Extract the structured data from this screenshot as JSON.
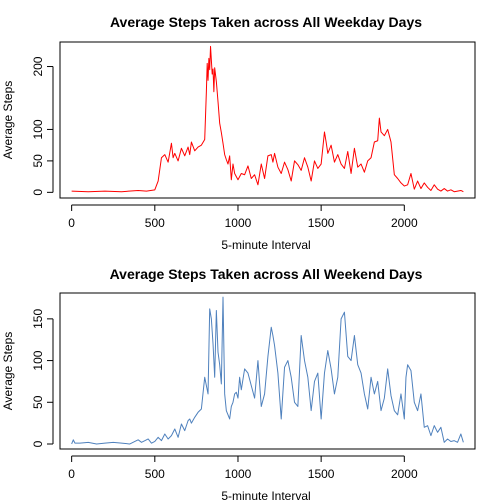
{
  "chart_data": [
    {
      "type": "line",
      "title": "Average Steps Taken across All Weekday Days",
      "xlabel": "5-minute Interval",
      "ylabel": "Average Steps",
      "xlim": [
        -70,
        2425
      ],
      "ylim": [
        -9,
        239
      ],
      "xticks": [
        0,
        500,
        1000,
        1500,
        2000
      ],
      "yticks": [
        0,
        50,
        100,
        200
      ],
      "grid": false,
      "color": "#ff0000",
      "x": [
        0,
        100,
        200,
        300,
        400,
        450,
        500,
        520,
        540,
        560,
        580,
        600,
        610,
        620,
        640,
        660,
        680,
        700,
        710,
        720,
        740,
        760,
        780,
        800,
        810,
        815,
        820,
        825,
        830,
        835,
        840,
        845,
        850,
        855,
        860,
        870,
        880,
        890,
        900,
        910,
        920,
        930,
        940,
        950,
        960,
        970,
        980,
        1000,
        1020,
        1040,
        1060,
        1080,
        1100,
        1120,
        1140,
        1160,
        1180,
        1200,
        1210,
        1220,
        1240,
        1260,
        1280,
        1300,
        1320,
        1340,
        1360,
        1380,
        1400,
        1420,
        1440,
        1460,
        1480,
        1500,
        1520,
        1530,
        1540,
        1560,
        1580,
        1600,
        1620,
        1640,
        1660,
        1680,
        1700,
        1720,
        1740,
        1760,
        1780,
        1800,
        1820,
        1840,
        1850,
        1860,
        1880,
        1900,
        1920,
        1940,
        1960,
        1980,
        2000,
        2020,
        2040,
        2060,
        2080,
        2100,
        2120,
        2140,
        2160,
        2180,
        2200,
        2220,
        2240,
        2260,
        2280,
        2300,
        2320,
        2340,
        2355
      ],
      "values": [
        2,
        1,
        2,
        1,
        3,
        2,
        4,
        18,
        55,
        60,
        48,
        78,
        55,
        62,
        50,
        70,
        58,
        72,
        60,
        80,
        66,
        72,
        75,
        84,
        160,
        205,
        178,
        213,
        195,
        232,
        210,
        188,
        196,
        160,
        198,
        176,
        144,
        110,
        95,
        78,
        60,
        52,
        45,
        58,
        20,
        45,
        30,
        20,
        30,
        28,
        42,
        22,
        28,
        12,
        45,
        22,
        58,
        60,
        48,
        62,
        40,
        30,
        48,
        36,
        18,
        50,
        44,
        35,
        55,
        40,
        18,
        50,
        38,
        45,
        96,
        80,
        62,
        75,
        48,
        60,
        45,
        38,
        65,
        30,
        70,
        40,
        45,
        32,
        50,
        55,
        80,
        82,
        118,
        96,
        90,
        100,
        80,
        28,
        22,
        15,
        10,
        12,
        30,
        5,
        18,
        6,
        15,
        8,
        3,
        12,
        5,
        2,
        6,
        2,
        4,
        1,
        2,
        3,
        1
      ]
    },
    {
      "type": "line",
      "title": "Average Steps Taken across All Weekend Days",
      "xlabel": "5-minute Interval",
      "ylabel": "Average Steps",
      "xlim": [
        -70,
        2425
      ],
      "ylim": [
        -6,
        181
      ],
      "xticks": [
        0,
        500,
        1000,
        1500,
        2000
      ],
      "yticks": [
        0,
        50,
        100,
        150
      ],
      "grid": false,
      "color": "#4f81bd",
      "x": [
        0,
        10,
        20,
        50,
        100,
        150,
        200,
        250,
        300,
        350,
        380,
        400,
        420,
        440,
        460,
        480,
        500,
        520,
        540,
        560,
        580,
        600,
        620,
        640,
        660,
        680,
        700,
        710,
        720,
        740,
        760,
        780,
        800,
        820,
        830,
        840,
        850,
        860,
        870,
        880,
        890,
        900,
        910,
        920,
        930,
        940,
        950,
        960,
        970,
        980,
        990,
        1000,
        1010,
        1020,
        1040,
        1060,
        1080,
        1100,
        1120,
        1140,
        1160,
        1180,
        1200,
        1210,
        1220,
        1240,
        1260,
        1280,
        1300,
        1320,
        1340,
        1360,
        1380,
        1400,
        1420,
        1440,
        1460,
        1480,
        1500,
        1520,
        1540,
        1560,
        1580,
        1600,
        1620,
        1640,
        1660,
        1680,
        1700,
        1720,
        1740,
        1760,
        1780,
        1800,
        1820,
        1840,
        1860,
        1880,
        1900,
        1920,
        1940,
        1960,
        1980,
        2000,
        2010,
        2020,
        2040,
        2060,
        2080,
        2100,
        2120,
        2140,
        2160,
        2180,
        2200,
        2220,
        2240,
        2260,
        2280,
        2300,
        2320,
        2340,
        2355
      ],
      "values": [
        0,
        5,
        1,
        1,
        2,
        0,
        1,
        2,
        1,
        0,
        3,
        5,
        2,
        4,
        6,
        1,
        3,
        8,
        4,
        12,
        6,
        10,
        18,
        8,
        24,
        16,
        28,
        30,
        25,
        32,
        38,
        42,
        80,
        60,
        162,
        150,
        120,
        80,
        160,
        110,
        95,
        72,
        176,
        60,
        40,
        35,
        30,
        45,
        50,
        60,
        62,
        55,
        80,
        65,
        90,
        85,
        70,
        55,
        100,
        45,
        60,
        105,
        140,
        130,
        118,
        85,
        30,
        92,
        100,
        80,
        50,
        45,
        130,
        100,
        80,
        40,
        75,
        85,
        30,
        85,
        112,
        90,
        60,
        80,
        150,
        158,
        105,
        100,
        130,
        95,
        85,
        60,
        42,
        80,
        60,
        75,
        40,
        55,
        90,
        58,
        40,
        35,
        60,
        30,
        80,
        95,
        88,
        50,
        40,
        60,
        20,
        22,
        10,
        22,
        14,
        20,
        2,
        6,
        3,
        4,
        2,
        12,
        2
      ]
    }
  ]
}
